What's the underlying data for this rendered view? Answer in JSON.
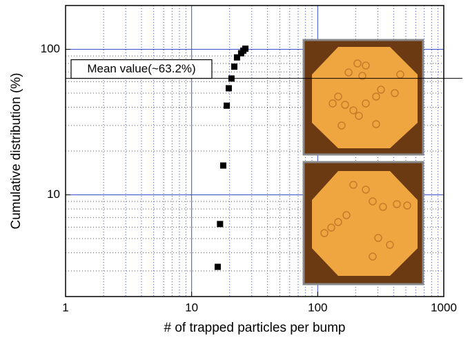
{
  "chart_data": {
    "type": "scatter",
    "xlabel": "# of trapped particles per bump",
    "ylabel": "Cumulative distribution (%)",
    "x": [
      16.1,
      16.8,
      17.8,
      19.0,
      19.7,
      20.7,
      21.8,
      22.9,
      24.7,
      25.7,
      26.7
    ],
    "series": [
      {
        "color": "#000000",
        "values": [
          3.2,
          6.3,
          15.9,
          41,
          54,
          63,
          76,
          88,
          94,
          98,
          101
        ]
      }
    ],
    "xlim": [
      1,
      1000
    ],
    "ylim": [
      2,
      200
    ],
    "xticks": [
      1,
      10,
      100,
      1000
    ],
    "yticks": [
      10,
      100
    ],
    "xscale": "log",
    "yscale": "log",
    "grid": true,
    "reference_line": {
      "value": 63.2,
      "label": "Mean value(~63.2%)"
    }
  }
}
